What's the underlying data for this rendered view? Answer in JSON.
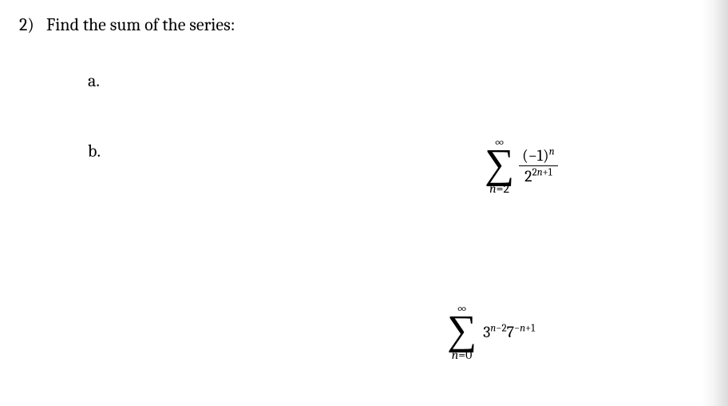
{
  "question": {
    "number": "2)",
    "prompt": "Find the sum of the series:"
  },
  "parts": {
    "a": {
      "label": "a.",
      "sigma_upper": "∞",
      "sigma_lower_var": "n",
      "sigma_lower_eq": "=",
      "sigma_lower_val": "2",
      "numerator_open": "(",
      "numerator_neg1": "−1",
      "numerator_close": ")",
      "numerator_exp": "n",
      "denominator_base": "2",
      "denominator_exp_2": "2",
      "denominator_exp_n": "n",
      "denominator_exp_plus": "+",
      "denominator_exp_1": "1"
    },
    "b": {
      "label": "b.",
      "sigma_upper": "∞",
      "sigma_lower_var": "n",
      "sigma_lower_eq": "=",
      "sigma_lower_val": "0",
      "t_3": "3",
      "t_3exp_n": "n",
      "t_3exp_minus": "−",
      "t_3exp_2": "2",
      "t_7": "7",
      "t_7exp_minus": "−",
      "t_7exp_n": "n",
      "t_7exp_plus": "+",
      "t_7exp_1": "1"
    }
  }
}
